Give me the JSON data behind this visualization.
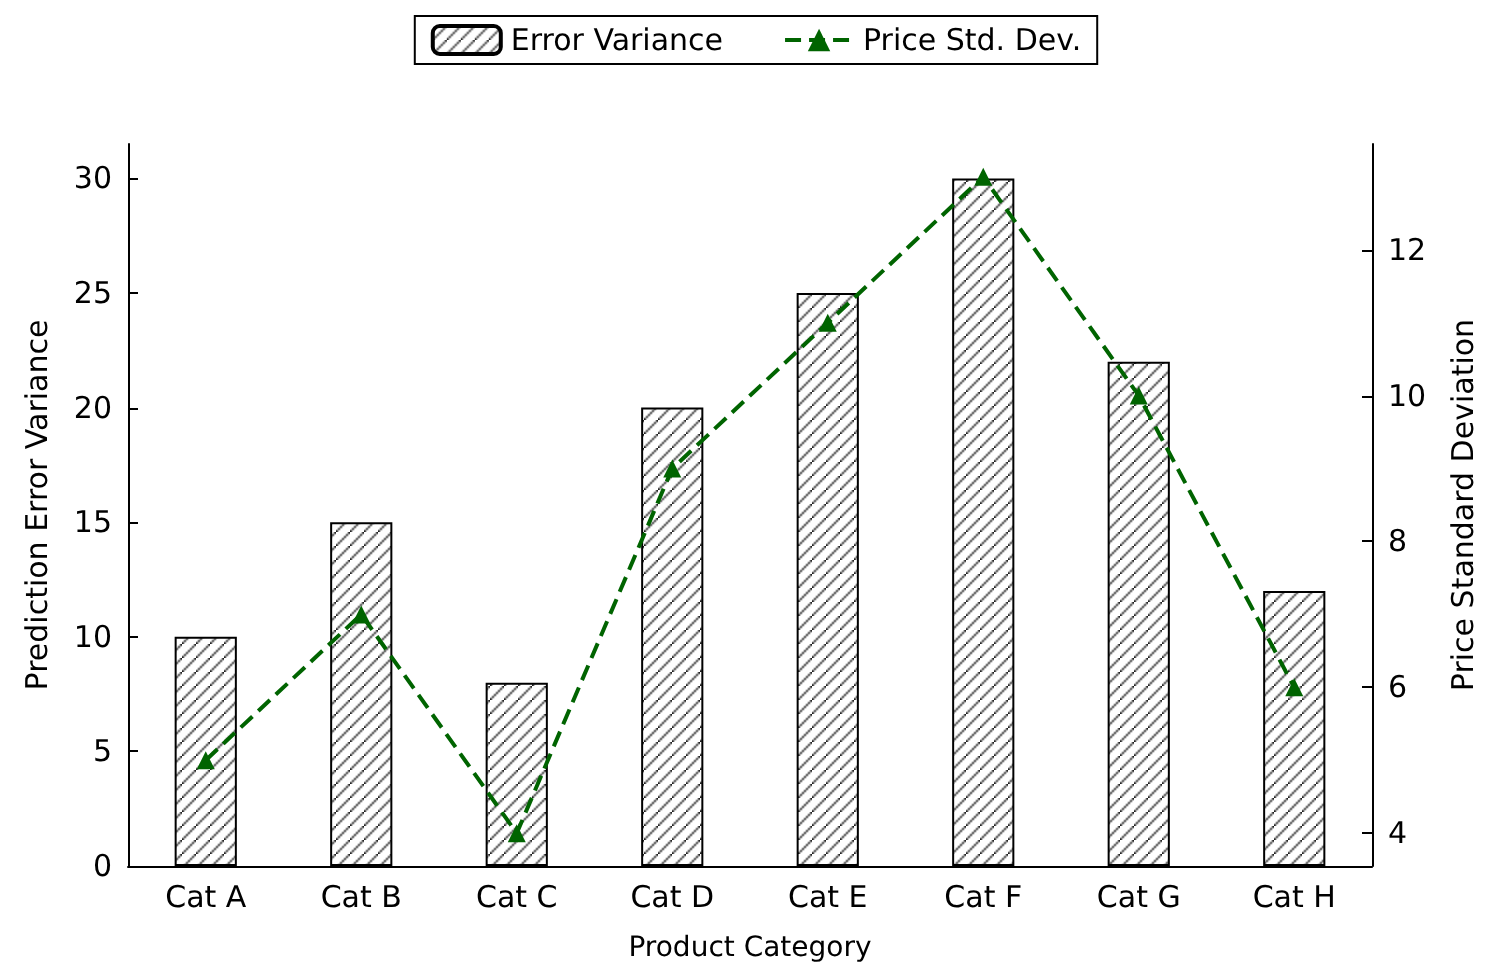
{
  "chart_data": {
    "type": "bar",
    "xlabel": "Product Category",
    "ylabel": "Prediction Error Variance",
    "y2label": "Price Standard Deviation",
    "categories": [
      "Cat A",
      "Cat B",
      "Cat C",
      "Cat D",
      "Cat E",
      "Cat F",
      "Cat G",
      "Cat H"
    ],
    "series": [
      {
        "name": "Error Variance",
        "color": "#000000",
        "values": [
          10,
          15,
          8,
          20,
          25,
          30,
          22,
          12
        ]
      },
      {
        "name": "Price Std. Dev.",
        "type": "line",
        "axis": "y2",
        "color": "#006400",
        "marker": "triangle",
        "line_style": "dashed",
        "values": [
          5,
          7,
          4,
          9,
          11,
          13,
          10,
          6
        ]
      }
    ],
    "ylim": [
      0,
      31.5
    ],
    "yticks": [
      0,
      5,
      10,
      15,
      20,
      25,
      30
    ],
    "y2lim": [
      3.55,
      13.45
    ],
    "y2ticks": [
      4,
      6,
      8,
      10,
      12
    ],
    "grid": false,
    "legend": "top"
  }
}
